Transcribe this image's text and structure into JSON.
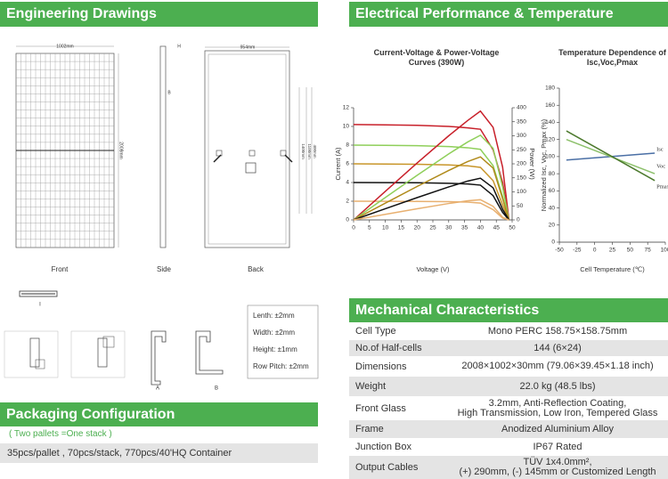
{
  "engineering": {
    "title": "Engineering Drawings",
    "dims": {
      "front_width": "1002mm",
      "front_height": "2008mm",
      "side_h": "H",
      "side_b": "B",
      "back_width": "954mm",
      "back_dim1": "1400mm",
      "back_dim2": "1100mm",
      "back_dim3": "400mm"
    },
    "views": [
      "Front",
      "Side",
      "Back"
    ],
    "profile_labels": [
      "I",
      "A",
      "B"
    ],
    "tolerances": [
      "Lenth: ±2mm",
      "Width: ±2mm",
      "Height: ±1mm",
      "Row Pitch: ±2mm"
    ]
  },
  "electrical_title": "Electrical Performance & Temperature Dependence",
  "chart_data": [
    {
      "type": "line",
      "title": "Current-Voltage & Power-Voltage Curves (390W)",
      "x_label": "Voltage (V)",
      "y_label": "Current (A)",
      "y2_label": "Power (W)",
      "x": [
        0,
        10,
        20,
        30,
        36,
        40,
        44,
        47,
        49
      ],
      "xlim": [
        0,
        50
      ],
      "xticks": [
        0,
        5,
        10,
        15,
        20,
        25,
        30,
        35,
        40,
        45,
        50
      ],
      "ylim": [
        0,
        12
      ],
      "yticks": [
        0,
        2,
        4,
        6,
        8,
        10,
        12
      ],
      "y2lim": [
        0,
        400
      ],
      "y2ticks": [
        0,
        50,
        100,
        150,
        200,
        250,
        300,
        350,
        400
      ],
      "series": [
        {
          "color": "#c8202a",
          "values": [
            10.2,
            10.17,
            10.12,
            10.0,
            9.85,
            9.7,
            7.5,
            4,
            0
          ]
        },
        {
          "color": "#8fcf5a",
          "values": [
            8.0,
            7.98,
            7.94,
            7.85,
            7.72,
            7.55,
            5.8,
            2.5,
            0
          ]
        },
        {
          "color": "#c8962a",
          "values": [
            6.0,
            5.98,
            5.95,
            5.88,
            5.78,
            5.62,
            4.2,
            1.6,
            0
          ]
        },
        {
          "color": "#111111",
          "values": [
            4.0,
            3.99,
            3.97,
            3.92,
            3.85,
            3.72,
            2.6,
            0.8,
            0
          ]
        },
        {
          "color": "#e8b070",
          "values": [
            2.0,
            1.99,
            1.98,
            1.95,
            1.9,
            1.8,
            1.1,
            0.2,
            0
          ]
        },
        {
          "color": "#c8202a",
          "axis": "y2",
          "values": [
            0,
            101.7,
            202.4,
            300,
            354.6,
            388,
            330,
            188,
            0
          ]
        },
        {
          "color": "#8fcf5a",
          "axis": "y2",
          "values": [
            0,
            79.8,
            158.8,
            235.5,
            277.9,
            302,
            255.2,
            117.5,
            0
          ]
        },
        {
          "color": "#b08a1a",
          "axis": "y2",
          "values": [
            0,
            59.8,
            119,
            176.4,
            208.1,
            224.8,
            184.8,
            75.2,
            0
          ]
        },
        {
          "color": "#111111",
          "axis": "y2",
          "values": [
            0,
            39.9,
            79.4,
            117.6,
            138.6,
            148.8,
            114.4,
            37.6,
            0
          ]
        },
        {
          "color": "#e8b070",
          "axis": "y2",
          "values": [
            0,
            19.9,
            39.6,
            58.5,
            68.4,
            72,
            48.4,
            9.4,
            0
          ]
        }
      ]
    },
    {
      "type": "line",
      "title": "Temperature Dependence of Isc,Voc,Pmax",
      "x_label": "Cell Temperature (℃)",
      "y_label": "Normalized Isc, Voc, Pmax (%)",
      "x": [
        -40,
        85
      ],
      "xlim": [
        -50,
        100
      ],
      "xticks": [
        -50,
        -25,
        0,
        25,
        50,
        75,
        100
      ],
      "ylim": [
        0,
        180
      ],
      "yticks": [
        0,
        20,
        40,
        60,
        80,
        100,
        120,
        140,
        160,
        180
      ],
      "series": [
        {
          "name": "Isc",
          "color": "#4a6fa5",
          "values": [
            96,
            104
          ]
        },
        {
          "name": "Voc",
          "color": "#8cc06a",
          "values": [
            120,
            80
          ]
        },
        {
          "name": "Pmax",
          "color": "#4d7a2e",
          "values": [
            130,
            72
          ]
        }
      ]
    }
  ],
  "mechanical": {
    "title": "Mechanical Characteristics",
    "rows": [
      {
        "label": "Cell Type",
        "value": "Mono PERC 158.75×158.75mm"
      },
      {
        "label": "No.of Half-cells",
        "value": "144 (6×24)"
      },
      {
        "label": "Dimensions",
        "value": "2008×1002×30mm (79.06×39.45×1.18 inch)"
      },
      {
        "label": "Weight",
        "value": "22.0 kg (48.5 lbs)"
      },
      {
        "label": "Front Glass",
        "value": [
          "3.2mm, Anti-Reflection Coating,",
          "High Transmission, Low Iron, Tempered Glass"
        ]
      },
      {
        "label": "Frame",
        "value": "Anodized Aluminium Alloy"
      },
      {
        "label": "Junction Box",
        "value": "IP67 Rated"
      },
      {
        "label": "Output Cables",
        "value": [
          "TÜV 1x4.0mm²,",
          "(+) 290mm, (-) 145mm or Customized Length"
        ]
      }
    ]
  },
  "packaging": {
    "title": "Packaging Configuration",
    "note": "( Two pallets =One stack )",
    "detail": "35pcs/pallet , 70pcs/stack, 770pcs/40'HQ Container"
  }
}
